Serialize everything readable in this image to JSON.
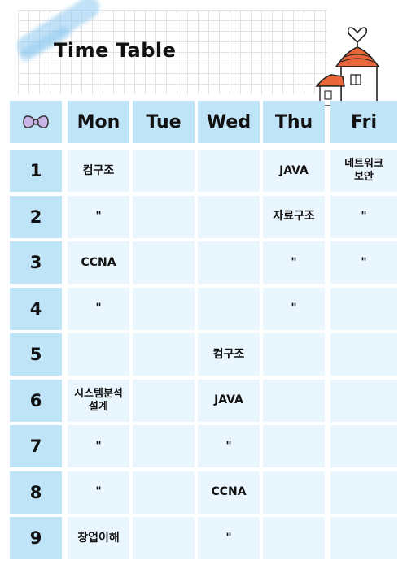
{
  "title": "Time Table",
  "colors": {
    "header_bg": "#bfe3f7",
    "cell_bg": "#eaf6fd",
    "roof": "#e8663a",
    "brush": "#8cc8f0"
  },
  "icons": {
    "corner": "bow-tie-icon",
    "decoration": "house-icon"
  },
  "days": [
    "Mon",
    "Tue",
    "Wed",
    "Thu",
    "Fri"
  ],
  "periods": [
    "1",
    "2",
    "3",
    "4",
    "5",
    "6",
    "7",
    "8",
    "9"
  ],
  "schedule": [
    [
      "컴구조",
      "",
      "",
      "JAVA",
      "네트워크\n보안"
    ],
    [
      "\"",
      "",
      "",
      "자료구조",
      "\""
    ],
    [
      "CCNA",
      "",
      "",
      "\"",
      "\""
    ],
    [
      "\"",
      "",
      "",
      "\"",
      ""
    ],
    [
      "",
      "",
      "컴구조",
      "",
      ""
    ],
    [
      "시스템분석\n설계",
      "",
      "JAVA",
      "",
      ""
    ],
    [
      "\"",
      "",
      "\"",
      "",
      ""
    ],
    [
      "\"",
      "",
      "CCNA",
      "",
      ""
    ],
    [
      "창업이해",
      "",
      "\"",
      "",
      ""
    ]
  ]
}
